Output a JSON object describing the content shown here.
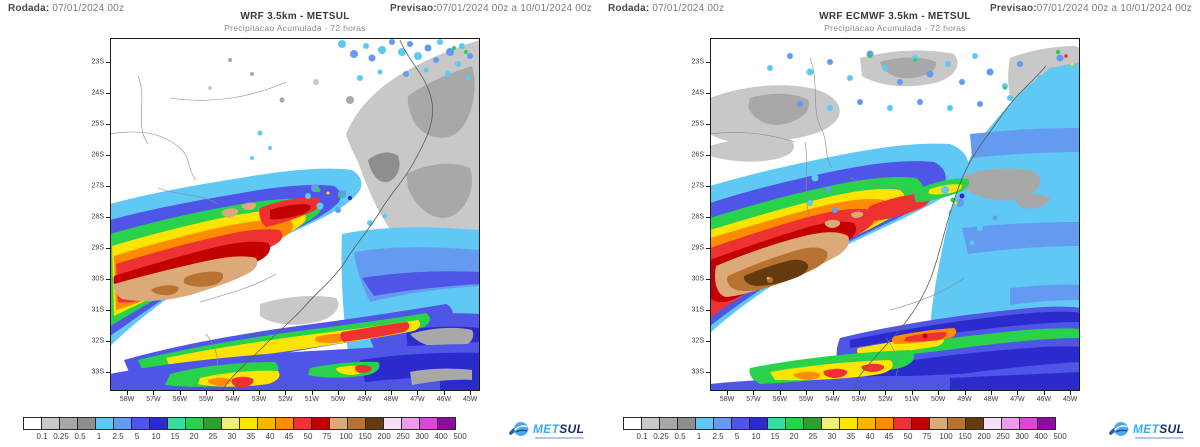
{
  "header": {
    "rodada_label": "Rodada:",
    "rodada_value": "07/01/2024 00z",
    "previsao_label": "Previsao:",
    "previsao_value": "07/01/2024 00z a 10/01/2024 00z"
  },
  "panels": [
    {
      "title": "WRF 3.5km - METSUL",
      "subtitle": "Precipitacao Acumulada - 72 horas"
    },
    {
      "title": "WRF ECMWF 3.5km - METSUL",
      "subtitle": "Precipitacao Acumulada - 72 horas"
    }
  ],
  "map": {
    "lat_ticks": [
      "23S",
      "24S",
      "25S",
      "26S",
      "27S",
      "28S",
      "29S",
      "30S",
      "31S",
      "32S",
      "33S"
    ],
    "lon_ticks": [
      "58W",
      "57W",
      "56W",
      "55W",
      "54W",
      "53W",
      "52W",
      "51W",
      "50W",
      "49W",
      "48W",
      "47W",
      "46W",
      "45W"
    ]
  },
  "legend": {
    "boundaries": [
      "0.1",
      "0.25",
      "0.5",
      "1",
      "2.5",
      "5",
      "10",
      "15",
      "20",
      "25",
      "30",
      "35",
      "40",
      "45",
      "50",
      "75",
      "100",
      "150",
      "200",
      "250",
      "300",
      "400",
      "500"
    ],
    "palette": [
      "#FFFFFF",
      "#C8C8C8",
      "#A8A8A8",
      "#8E8E8E",
      "#5FC8F5",
      "#649BF0",
      "#4F55E6",
      "#2A2ACD",
      "#3CDCA0",
      "#28D24B",
      "#2E9E2E",
      "#F0F078",
      "#FFE400",
      "#FFB400",
      "#FF8C00",
      "#EE3232",
      "#C20000",
      "#DCAA78",
      "#B87333",
      "#663A0F",
      "#F5E0F5",
      "#EE9BEE",
      "#DC46DC",
      "#8C0CA0"
    ]
  },
  "logo": {
    "met": "MET",
    "sul": "SUL"
  }
}
